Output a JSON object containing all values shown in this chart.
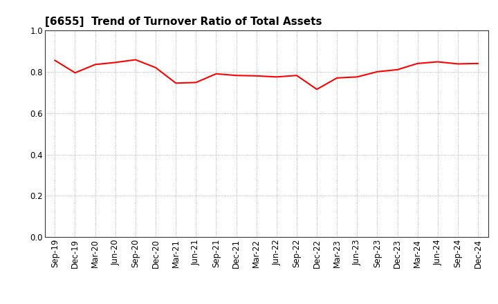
{
  "title": "[6655]  Trend of Turnover Ratio of Total Assets",
  "x_labels": [
    "Sep-19",
    "Dec-19",
    "Mar-20",
    "Jun-20",
    "Sep-20",
    "Dec-20",
    "Mar-21",
    "Jun-21",
    "Sep-21",
    "Dec-21",
    "Mar-22",
    "Jun-22",
    "Sep-22",
    "Dec-22",
    "Mar-23",
    "Jun-23",
    "Sep-23",
    "Dec-23",
    "Mar-24",
    "Jun-24",
    "Sep-24",
    "Dec-24"
  ],
  "y_values": [
    0.855,
    0.795,
    0.835,
    0.845,
    0.858,
    0.82,
    0.745,
    0.748,
    0.79,
    0.782,
    0.78,
    0.775,
    0.782,
    0.715,
    0.77,
    0.775,
    0.8,
    0.81,
    0.84,
    0.848,
    0.838,
    0.84
  ],
  "ylim": [
    0.0,
    1.0
  ],
  "yticks": [
    0.0,
    0.2,
    0.4,
    0.6,
    0.8,
    1.0
  ],
  "line_color": "#FF0000",
  "line_width": 1.5,
  "background_color": "#FFFFFF",
  "grid_color": "#999999",
  "title_fontsize": 11,
  "tick_fontsize": 8.5,
  "axes_facecolor": "#FFFFFF"
}
